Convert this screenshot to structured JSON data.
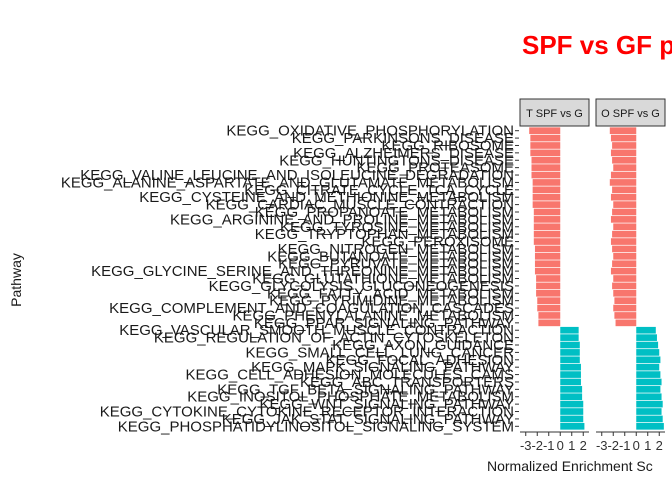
{
  "chart_data": {
    "type": "bar",
    "orientation": "horizontal",
    "title": "SPF vs GF p",
    "xlabel": "Normalized Enrichment Sc",
    "ylabel": "Pathway",
    "xlim": [
      -3.5,
      2.5
    ],
    "x_ticks": [
      -3,
      -2,
      -1,
      0,
      1,
      2
    ],
    "x_tick_labels": [
      "-3",
      "-2",
      "-1",
      "0",
      "1",
      "2"
    ],
    "grid": false,
    "legend": "none",
    "colors": {
      "negative": "#f8766d",
      "positive": "#00bfc4"
    },
    "facets": [
      "T SPF vs G",
      "O SPF vs G"
    ],
    "categories": [
      "KEGG_OXIDATIVE_PHOSPHORYLATION",
      "KEGG_PARKINSONS_DISEASE",
      "KEGG_RIBOSOME",
      "KEGG_ALZHEIMERS_DISEASE",
      "KEGG_HUNTINGTONS_DISEASE",
      "KEGG_PROTEASOME",
      "KEGG_VALINE_LEUCINE_AND_ISOLEUCINE_DEGRADATION",
      "KEGG_ALANINE_ASPARTATE_AND_GLUTAMATE_METABOLISM",
      "KEGG_CITRATE_CYCLE_TCA_CYCLE",
      "KEGG_CYSTEINE_AND_METHIONINE_METABOLISM",
      "KEGG_CARDIAC_MUSCLE_CONTRACTION",
      "KEGG_PROPANOATE_METABOLISM",
      "KEGG_ARGININE_AND_PROLINE_METABOLISM",
      "KEGG_TYROSINE_METABOLISM",
      "KEGG_TRYPTOPHAN_METABOLISM",
      "KEGG_PEROXISOME",
      "KEGG_NITROGEN_METABOLISM",
      "KEGG_BUTANOATE_METABOLISM",
      "KEGG_PYRUVATE_METABOLISM",
      "KEGG_GLYCINE_SERINE_AND_THREONINE_METABOLISM",
      "KEGG_GLUTATHIONE_METABOLISM",
      "KEGG_GLYCOLYSIS_GLUCONEOGENESIS",
      "KEGG_FATTY_ACID_METABOLISM",
      "KEGG_PYRIMIDINE_METABOLISM",
      "KEGG_COMPLEMENT_AND_COAGULATION_CASCADES",
      "KEGG_PHENYLALANINE_METABOLISM",
      "KEGG_PPAR_SIGNALING_PATHWAY",
      "KEGG_VASCULAR_SMOOTH_MUSCLE_CONTRACTION",
      "KEGG_REGULATION_OF_ACTIN_CYTOSKELETON",
      "KEGG_AXON_GUIDANCE",
      "KEGG_SMALL_CELL_LUNG_CANCER",
      "KEGG_FOCAL_ADHESION",
      "KEGG_MAPK_SIGNALING_PATHWAY",
      "KEGG_CELL_ADHESION_MOLECULES_CAMS",
      "KEGG_ABC_TRANSPORTERS",
      "KEGG_TGF_BETA_SIGNALING_PATHWAY",
      "KEGG_INOSITOL_PHOSPHATE_METABOLISM",
      "KEGG_WNT_SIGNALING_PATHWAY",
      "KEGG_CYTOKINE_CYTOKINE_RECEPTOR_INTERACTION",
      "KEGG_JAK_STAT_SIGNALING_PATHWAY",
      "KEGG_PHOSPHATIDYLINOSITOL_SIGNALING_SYSTEM"
    ],
    "series": [
      {
        "values": [
          -2.7,
          -2.6,
          -2.6,
          -2.6,
          -2.5,
          -2.5,
          -2.5,
          -2.4,
          -2.4,
          -2.4,
          -2.4,
          -2.3,
          -2.3,
          -2.3,
          -2.3,
          -2.3,
          -2.2,
          -2.2,
          -2.2,
          -2.2,
          -2.1,
          -2.1,
          -2.1,
          -2.0,
          -2.0,
          -1.9,
          -1.9,
          1.6,
          1.6,
          1.7,
          1.7,
          1.7,
          1.8,
          1.8,
          1.8,
          1.9,
          1.9,
          2.0,
          2.0,
          2.0,
          2.1
        ]
      },
      {
        "values": [
          -2.3,
          -2.2,
          -2.1,
          -2.2,
          -2.1,
          -2.0,
          -2.2,
          -2.3,
          -2.1,
          -2.2,
          -2.0,
          -2.1,
          -2.2,
          -2.0,
          -2.1,
          -2.2,
          -2.1,
          -2.0,
          -2.1,
          -2.2,
          -2.0,
          -2.1,
          -2.0,
          -1.9,
          -2.0,
          -1.9,
          -1.8,
          1.7,
          1.8,
          1.9,
          2.0,
          2.1,
          2.0,
          2.1,
          2.2,
          2.1,
          2.2,
          2.3,
          2.2,
          2.3,
          2.4
        ]
      }
    ]
  }
}
